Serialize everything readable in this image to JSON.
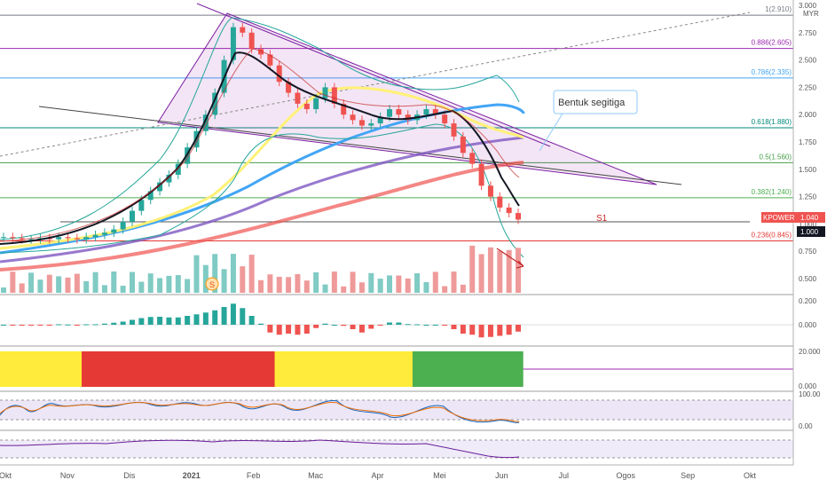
{
  "chart_data": {
    "type": "candlestick",
    "currency": "MYR",
    "price_scale": {
      "ticks": [
        "3.000",
        "2.750",
        "2.500",
        "2.250",
        "2.000",
        "1.750",
        "1.500",
        "1.250",
        "1.000",
        "0.750",
        "0.500"
      ],
      "ymin": 0.32,
      "ymax": 3.0
    },
    "time_axis": [
      "Okt",
      "Nov",
      "Dis",
      "2021",
      "Feb",
      "Mac",
      "Apr",
      "Mei",
      "Jun",
      "Jul",
      "Ogos",
      "Sep",
      "Okt"
    ],
    "fibonacci": [
      {
        "label": "1(2.910)",
        "price": 2.91,
        "color": "#787b86"
      },
      {
        "label": "0.886(2.605)",
        "price": 2.605,
        "color": "#9c27b0"
      },
      {
        "label": "0.786(2.335)",
        "price": 2.335,
        "color": "#42a5f5"
      },
      {
        "label": "0.618(1.880)",
        "price": 1.88,
        "color": "#00897b"
      },
      {
        "label": "0.5(1.560)",
        "price": 1.56,
        "color": "#43a047"
      },
      {
        "label": "0.382(1.240)",
        "price": 1.24,
        "color": "#4caf50"
      },
      {
        "label": "0.236(0.845)",
        "price": 0.845,
        "color": "#e53935"
      }
    ],
    "annotations": {
      "callout": "Bentuk segitiga",
      "support_label": "S1",
      "volume_marker": "S"
    },
    "price_tags": [
      {
        "label": "KPOWER",
        "value": "1.040",
        "color": "#ef5350"
      },
      {
        "label": "",
        "value": "1.000",
        "color": "#131722"
      }
    ],
    "series": [
      {
        "name": "close",
        "values": [
          0.88,
          0.87,
          0.86,
          0.86,
          0.87,
          0.86,
          0.88,
          0.87,
          0.86,
          0.88,
          0.9,
          0.92,
          0.95,
          1.02,
          1.12,
          1.22,
          1.3,
          1.38,
          1.45,
          1.55,
          1.7,
          1.85,
          2.0,
          2.2,
          2.5,
          2.8,
          2.75,
          2.6,
          2.55,
          2.45,
          2.3,
          2.2,
          2.1,
          2.05,
          2.15,
          2.25,
          2.1,
          2.0,
          1.95,
          1.9,
          1.92,
          1.98,
          2.05,
          2.0,
          1.95,
          2.0,
          2.05,
          2.0,
          1.92,
          1.8,
          1.65,
          1.55,
          1.35,
          1.25,
          1.15,
          1.1,
          1.04
        ]
      }
    ],
    "volume_scale": {
      "ticks": []
    },
    "indicator_panes": [
      {
        "name": "macd",
        "ticks": [
          "0.200",
          "0.000"
        ]
      },
      {
        "name": "rsi-bands",
        "ticks": [
          "20.000",
          "0.000"
        ]
      },
      {
        "name": "stochastic",
        "ticks": [
          "100.00",
          "0.00"
        ]
      },
      {
        "name": "momentum",
        "ticks": []
      }
    ]
  }
}
